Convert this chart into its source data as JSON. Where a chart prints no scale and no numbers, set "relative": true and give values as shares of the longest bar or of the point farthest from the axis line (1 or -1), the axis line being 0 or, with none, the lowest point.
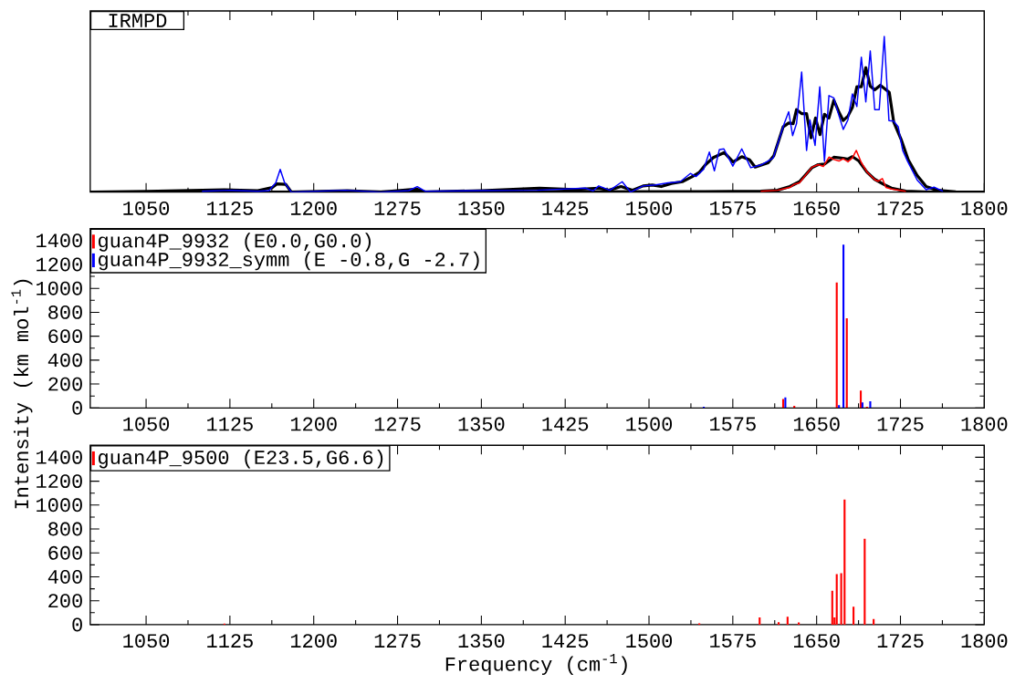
{
  "chart_data": [
    {
      "type": "line",
      "relative": true,
      "xlim": [
        1000,
        1800
      ],
      "xticks": [
        1050,
        1125,
        1200,
        1275,
        1350,
        1425,
        1500,
        1575,
        1650,
        1725,
        1800
      ],
      "annotations": [
        "IRMPD"
      ],
      "series": [
        {
          "color": "#0000ff",
          "x": [
            1100,
            1125,
            1150,
            1160,
            1166,
            1170,
            1174,
            1180,
            1228,
            1260,
            1285,
            1292.6,
            1300,
            1350,
            1400,
            1443,
            1450,
            1455,
            1465,
            1476,
            1483.5,
            1494.7,
            1506,
            1517,
            1528,
            1537,
            1542,
            1549,
            1554,
            1558.5,
            1563,
            1567,
            1575,
            1583,
            1591,
            1601,
            1611,
            1621,
            1625,
            1628.5,
            1632,
            1636.6,
            1641,
            1644,
            1648.6,
            1652.8,
            1657,
            1661,
            1665.4,
            1669.6,
            1673.8,
            1678,
            1682,
            1686,
            1690,
            1694,
            1698,
            1702,
            1706,
            1710.5,
            1714.7,
            1719,
            1723,
            1727,
            1731.4,
            1740,
            1748,
            1755,
            1763
          ],
          "values": [
            0.005,
            0.012,
            0.005,
            0.01,
            0.06,
            0.146,
            0.06,
            0,
            0.012,
            0,
            0.01,
            0.035,
            0.005,
            0.01,
            0.012,
            0.026,
            0.008,
            0.04,
            0.012,
            0.067,
            0,
            0.04,
            0.046,
            0.06,
            0.067,
            0.12,
            0.1,
            0.147,
            0.258,
            0.137,
            0.274,
            0.278,
            0.167,
            0.278,
            0.157,
            0.177,
            0.218,
            0.44,
            0.516,
            0.363,
            0.44,
            0.772,
            0.268,
            0.464,
            0.3,
            0.677,
            0.198,
            0.62,
            0.605,
            0.5,
            0.403,
            0.464,
            0.631,
            0.55,
            0.867,
            0.58,
            0.907,
            0.53,
            0.53,
            1.0,
            0.46,
            0.456,
            0.42,
            0.268,
            0.198,
            0.077,
            0.016,
            0.032,
            0.006
          ]
        },
        {
          "color": "#ff0000",
          "x": [
            1600,
            1615,
            1626,
            1630,
            1634.6,
            1645.8,
            1651.4,
            1656,
            1661,
            1665.4,
            1670,
            1673.8,
            1678,
            1682,
            1685.5,
            1690,
            1695,
            1702,
            1705,
            1708.8,
            1712,
            1717,
            1729.8
          ],
          "values": [
            0.006,
            0.012,
            0.03,
            0.05,
            0.06,
            0.16,
            0.177,
            0.165,
            0.225,
            0.21,
            0.2,
            0.215,
            0.195,
            0.22,
            0.268,
            0.19,
            0.13,
            0.08,
            0.07,
            0.087,
            0.03,
            0.02,
            0.005
          ]
        },
        {
          "color": "#000000",
          "x": [
            1000,
            1050,
            1120,
            1150,
            1163,
            1167,
            1175,
            1180,
            1230,
            1260,
            1292,
            1300,
            1350,
            1402,
            1433,
            1455,
            1464,
            1475,
            1485,
            1494.7,
            1503,
            1511,
            1520,
            1529.7,
            1538,
            1545,
            1550.6,
            1557.6,
            1567.4,
            1575.3,
            1583,
            1590,
            1595,
            1606.6,
            1611.7,
            1620,
            1625,
            1629,
            1632,
            1636.8,
            1641,
            1645,
            1649,
            1653,
            1657,
            1661,
            1665.4,
            1669.6,
            1673.8,
            1678,
            1682,
            1686,
            1690,
            1694,
            1698,
            1702,
            1707,
            1715,
            1719,
            1725.6,
            1732,
            1740,
            1748,
            1758,
            1774.5,
            1800
          ],
          "values": [
            0,
            0.005,
            0.015,
            0.01,
            0.03,
            0.053,
            0.05,
            0,
            0.01,
            0,
            0.02,
            0,
            0.01,
            0.026,
            0.016,
            0.026,
            0.012,
            0.036,
            0.012,
            0.04,
            0.046,
            0.036,
            0.056,
            0.067,
            0.097,
            0.127,
            0.177,
            0.222,
            0.254,
            0.194,
            0.228,
            0.208,
            0.161,
            0.188,
            0.234,
            0.419,
            0.444,
            0.44,
            0.53,
            0.504,
            0.504,
            0.349,
            0.476,
            0.369,
            0.5,
            0.476,
            0.59,
            0.52,
            0.46,
            0.488,
            0.544,
            0.677,
            0.677,
            0.8,
            0.68,
            0.657,
            0.687,
            0.641,
            0.45,
            0.339,
            0.208,
            0.107,
            0.036,
            0.012,
            0.002,
            0
          ]
        },
        {
          "color": "#000000",
          "x": [
            1000,
            1550,
            1600,
            1615,
            1626,
            1634.6,
            1645.8,
            1651.4,
            1657,
            1665.4,
            1673.8,
            1678,
            1682,
            1687.8,
            1694.8,
            1701.8,
            1710,
            1717,
            1729.8,
            1755,
            1800
          ],
          "values": [
            0,
            0.004,
            0.006,
            0.012,
            0.036,
            0.067,
            0.157,
            0.177,
            0.18,
            0.224,
            0.218,
            0.212,
            0.228,
            0.2,
            0.131,
            0.083,
            0.05,
            0.026,
            0.006,
            0,
            0
          ]
        }
      ]
    },
    {
      "type": "bar",
      "xlim": [
        1000,
        1800
      ],
      "xticks": [
        1050,
        1125,
        1200,
        1275,
        1350,
        1425,
        1500,
        1575,
        1650,
        1725,
        1800
      ],
      "ylim": [
        0,
        1500
      ],
      "yticks": [
        0,
        200,
        400,
        600,
        800,
        1000,
        1200,
        1400
      ],
      "legend": "top left",
      "series": [
        {
          "name": "guan4P_9932 (E0.0,G0.0)",
          "color": "#ff0000",
          "x": [
            1620,
            1630,
            1668,
            1677,
            1689.5,
            1695
          ],
          "values": [
            75,
            18,
            1050,
            750,
            145,
            10
          ]
        },
        {
          "name": "guan4P_9932_symm (E -0.8,G -2.7)",
          "color": "#0000ff",
          "x": [
            1549,
            1622,
            1670,
            1674,
            1691,
            1698
          ],
          "values": [
            10,
            89,
            24,
            1365,
            47,
            55
          ]
        }
      ]
    },
    {
      "type": "bar",
      "xlim": [
        1000,
        1800
      ],
      "xticks": [
        1050,
        1125,
        1200,
        1275,
        1350,
        1425,
        1500,
        1575,
        1650,
        1725,
        1800
      ],
      "ylim": [
        0,
        1500
      ],
      "yticks": [
        0,
        200,
        400,
        600,
        800,
        1000,
        1200,
        1400
      ],
      "legend": "top left",
      "xlabel": "Frequency (cm$^{-1}$)",
      "ylabel": "Intensity (km mol$^{-1}$)",
      "series": [
        {
          "name": "guan4P_9500 (E23.5,G6.6)",
          "color": "#ff0000",
          "x": [
            1120,
            1545,
            1599,
            1616,
            1624,
            1634,
            1664,
            1666,
            1668,
            1672,
            1675,
            1683,
            1693,
            1701
          ],
          "values": [
            10,
            12,
            60,
            21,
            67,
            19,
            284,
            60,
            422,
            430,
            1047,
            151,
            719,
            47
          ]
        }
      ]
    }
  ]
}
